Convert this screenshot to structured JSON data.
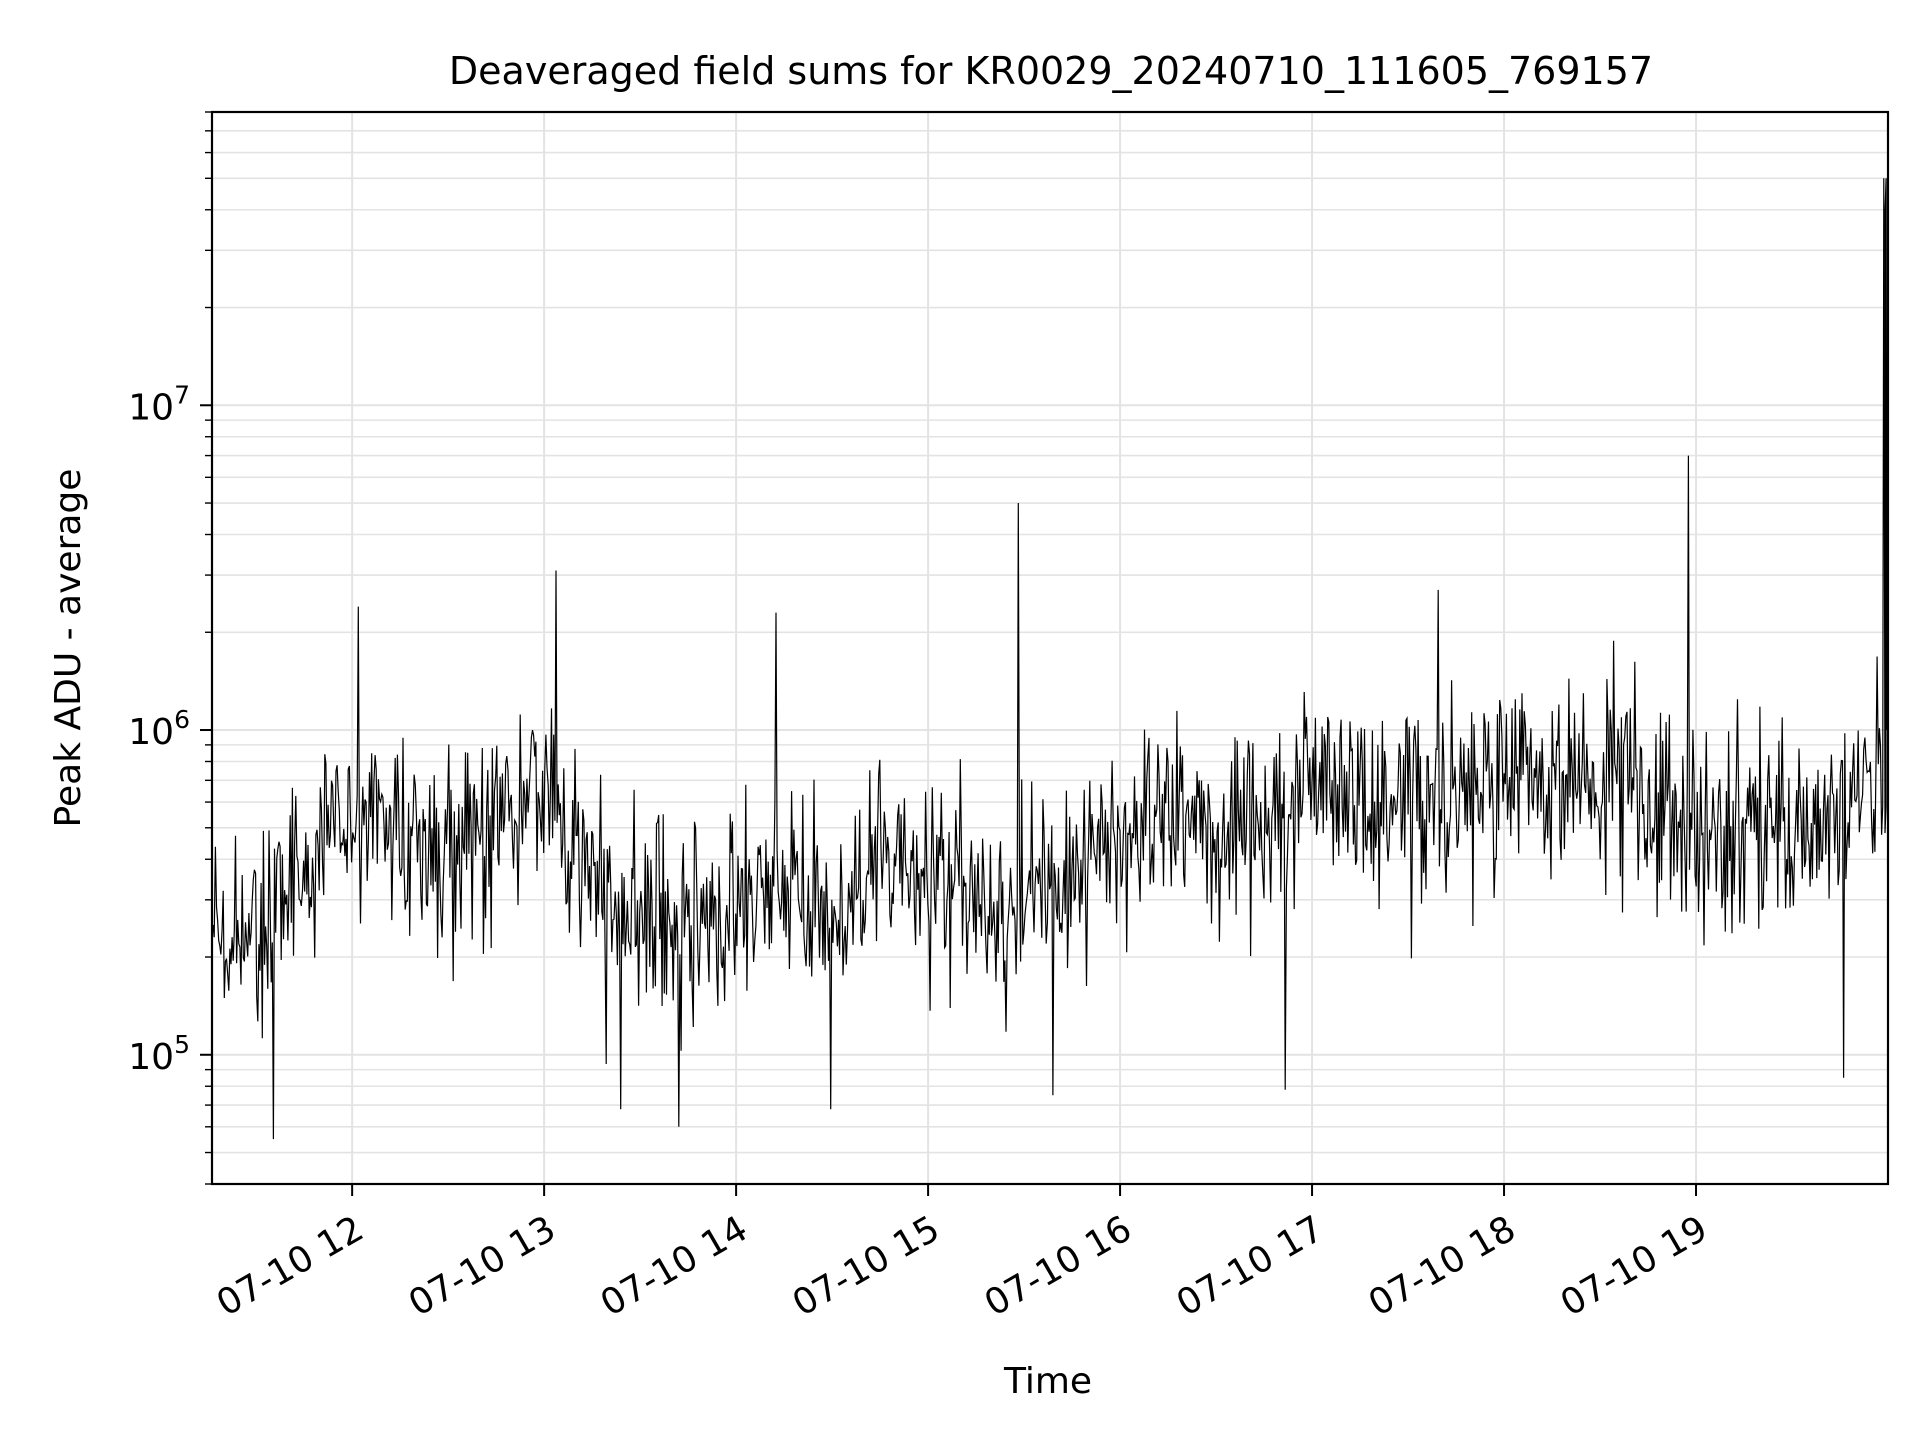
{
  "chart_data": {
    "type": "line",
    "title": "Deaveraged field sums for KR0029_20240710_111605_769157",
    "xlabel": "Time",
    "ylabel": "Peak ADU - average",
    "x_axis": {
      "kind": "datetime",
      "range": [
        "2024-07-10 11:16",
        "2024-07-10 20:00"
      ],
      "tick_labels": [
        "07-10 12",
        "07-10 13",
        "07-10 14",
        "07-10 15",
        "07-10 16",
        "07-10 17",
        "07-10 18",
        "07-10 19"
      ],
      "tick_hours": [
        12,
        13,
        14,
        15,
        16,
        17,
        18,
        19
      ]
    },
    "y_axis": {
      "scale": "log",
      "range": [
        40000,
        80000000
      ],
      "major_ticks": [
        100000,
        1000000,
        10000000
      ],
      "major_tick_labels": [
        {
          "base": "10",
          "exp": "5"
        },
        {
          "base": "10",
          "exp": "6"
        },
        {
          "base": "10",
          "exp": "7"
        }
      ]
    },
    "grid": true,
    "legend": "none",
    "series": [
      {
        "color": "#000000",
        "time_hours": [
          11.27,
          11.5,
          11.75,
          12.0,
          12.25,
          12.5,
          12.75,
          13.0,
          13.25,
          13.5,
          13.75,
          14.0,
          14.25,
          14.5,
          14.75,
          15.0,
          15.25,
          15.5,
          15.75,
          16.0,
          16.25,
          16.5,
          16.75,
          17.0,
          17.25,
          17.5,
          17.75,
          18.0,
          18.25,
          18.5,
          18.75,
          19.0,
          19.25,
          19.5,
          19.75,
          19.98
        ],
        "median_values": [
          230000,
          230000,
          380000,
          550000,
          500000,
          400000,
          550000,
          700000,
          320000,
          280000,
          260000,
          300000,
          350000,
          250000,
          360000,
          350000,
          320000,
          300000,
          380000,
          500000,
          550000,
          500000,
          560000,
          620000,
          650000,
          600000,
          580000,
          750000,
          700000,
          700000,
          600000,
          500000,
          550000,
          450000,
          600000,
          700000
        ],
        "peaks": [
          {
            "time_hours": 11.59,
            "value": 55000
          },
          {
            "time_hours": 12.03,
            "value": 2400000
          },
          {
            "time_hours": 13.06,
            "value": 3100000
          },
          {
            "time_hours": 13.4,
            "value": 68000
          },
          {
            "time_hours": 13.7,
            "value": 60000
          },
          {
            "time_hours": 14.21,
            "value": 2300000
          },
          {
            "time_hours": 14.49,
            "value": 68000
          },
          {
            "time_hours": 15.47,
            "value": 5000000
          },
          {
            "time_hours": 15.65,
            "value": 75000
          },
          {
            "time_hours": 16.86,
            "value": 78000
          },
          {
            "time_hours": 17.66,
            "value": 2700000
          },
          {
            "time_hours": 18.96,
            "value": 7000000
          },
          {
            "time_hours": 19.77,
            "value": 85000
          },
          {
            "time_hours": 19.98,
            "value": 50000000
          }
        ]
      }
    ]
  }
}
